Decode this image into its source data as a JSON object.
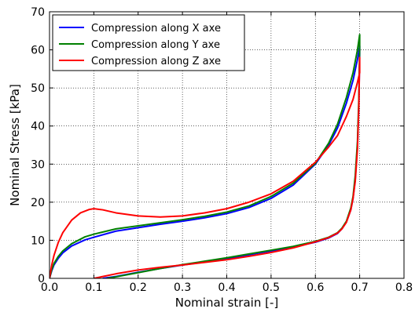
{
  "chart_data": {
    "type": "line",
    "title": "",
    "xlabel": "Nominal strain [-]",
    "ylabel": "Nominal Stress [kPa]",
    "xlim": [
      0.0,
      0.8
    ],
    "ylim": [
      0,
      70
    ],
    "xticks": [
      0.0,
      0.1,
      0.2,
      0.3,
      0.4,
      0.5,
      0.6,
      0.7,
      0.8
    ],
    "xtick_labels": [
      "0.0",
      "0.1",
      "0.2",
      "0.3",
      "0.4",
      "0.5",
      "0.6",
      "0.7",
      "0.8"
    ],
    "yticks": [
      0,
      10,
      20,
      30,
      40,
      50,
      60,
      70
    ],
    "ytick_labels": [
      "0",
      "10",
      "20",
      "30",
      "40",
      "50",
      "60",
      "70"
    ],
    "grid": true,
    "legend_position": "top-left",
    "series": [
      {
        "name": "Compression along X axe",
        "color": "#0000ff",
        "x": [
          0.0,
          0.005,
          0.01,
          0.02,
          0.03,
          0.05,
          0.08,
          0.1,
          0.15,
          0.2,
          0.25,
          0.3,
          0.35,
          0.4,
          0.45,
          0.5,
          0.55,
          0.6,
          0.63,
          0.65,
          0.67,
          0.685,
          0.695,
          0.7,
          0.7,
          0.698,
          0.695,
          0.69,
          0.685,
          0.68,
          0.67,
          0.66,
          0.65,
          0.63,
          0.6,
          0.55,
          0.5,
          0.45,
          0.4,
          0.35,
          0.3,
          0.25,
          0.2,
          0.15,
          0.12
        ],
        "y": [
          0.0,
          2.0,
          3.5,
          5.3,
          6.7,
          8.5,
          10.1,
          10.8,
          12.4,
          13.3,
          14.2,
          15.0,
          15.9,
          17.0,
          18.6,
          21.0,
          24.5,
          30.0,
          35.0,
          39.5,
          46.0,
          52.0,
          57.5,
          61.0,
          59.0,
          45.0,
          35.0,
          26.0,
          21.0,
          18.0,
          14.8,
          13.0,
          11.8,
          10.6,
          9.5,
          8.2,
          7.2,
          6.2,
          5.2,
          4.3,
          3.5,
          2.6,
          1.6,
          0.5,
          0.0
        ]
      },
      {
        "name": "Compression along Y axe",
        "color": "#008000",
        "x": [
          0.0,
          0.005,
          0.01,
          0.02,
          0.03,
          0.05,
          0.08,
          0.1,
          0.15,
          0.2,
          0.25,
          0.3,
          0.35,
          0.4,
          0.45,
          0.5,
          0.55,
          0.6,
          0.63,
          0.65,
          0.67,
          0.685,
          0.695,
          0.7,
          0.7,
          0.698,
          0.695,
          0.69,
          0.685,
          0.68,
          0.67,
          0.66,
          0.65,
          0.63,
          0.6,
          0.55,
          0.5,
          0.45,
          0.4,
          0.35,
          0.3,
          0.25,
          0.2,
          0.15,
          0.13
        ],
        "y": [
          0.0,
          2.3,
          3.9,
          5.8,
          7.2,
          9.1,
          10.9,
          11.6,
          13.0,
          13.8,
          14.6,
          15.4,
          16.3,
          17.4,
          19.0,
          21.5,
          25.0,
          30.2,
          35.5,
          40.5,
          47.5,
          54.0,
          60.0,
          64.0,
          61.0,
          47.0,
          36.0,
          27.0,
          21.5,
          18.5,
          15.0,
          13.2,
          12.0,
          10.8,
          9.7,
          8.4,
          7.4,
          6.4,
          5.4,
          4.5,
          3.6,
          2.6,
          1.5,
          0.4,
          0.0
        ]
      },
      {
        "name": "Compression along Z axe",
        "color": "#ff0000",
        "x": [
          0.0,
          0.005,
          0.01,
          0.02,
          0.03,
          0.05,
          0.07,
          0.09,
          0.1,
          0.12,
          0.15,
          0.2,
          0.25,
          0.3,
          0.35,
          0.4,
          0.45,
          0.5,
          0.55,
          0.6,
          0.63,
          0.65,
          0.67,
          0.685,
          0.695,
          0.7,
          0.7,
          0.698,
          0.695,
          0.69,
          0.685,
          0.68,
          0.67,
          0.66,
          0.65,
          0.63,
          0.6,
          0.55,
          0.5,
          0.45,
          0.4,
          0.35,
          0.3,
          0.25,
          0.2,
          0.15,
          0.1
        ],
        "y": [
          0.0,
          3.5,
          6.0,
          9.5,
          12.0,
          15.3,
          17.2,
          18.1,
          18.3,
          18.0,
          17.2,
          16.4,
          16.1,
          16.4,
          17.2,
          18.3,
          20.0,
          22.2,
          25.5,
          30.5,
          34.5,
          37.5,
          42.5,
          47.0,
          51.5,
          54.0,
          58.0,
          45.0,
          34.0,
          25.5,
          21.0,
          18.0,
          14.7,
          13.0,
          11.9,
          10.7,
          9.6,
          8.0,
          6.8,
          5.8,
          4.9,
          4.2,
          3.5,
          2.9,
          2.2,
          1.2,
          0.0
        ]
      }
    ]
  }
}
